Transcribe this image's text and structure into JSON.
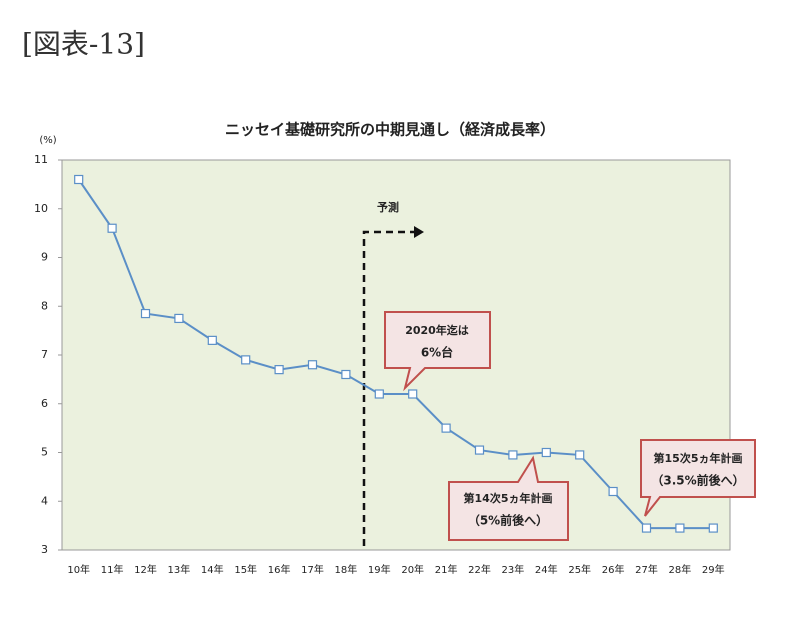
{
  "figure_label": "[図表-13]",
  "chart_data": {
    "type": "line",
    "title": "ニッセイ基礎研究所の中期見通し（経済成長率）",
    "y_unit": "(%)",
    "categories": [
      "10年",
      "11年",
      "12年",
      "13年",
      "14年",
      "15年",
      "16年",
      "17年",
      "18年",
      "19年",
      "20年",
      "21年",
      "22年",
      "23年",
      "24年",
      "25年",
      "26年",
      "27年",
      "28年",
      "29年"
    ],
    "values": [
      10.6,
      9.6,
      7.85,
      7.75,
      7.3,
      6.9,
      6.7,
      6.8,
      6.6,
      6.2,
      6.2,
      5.5,
      5.05,
      4.95,
      5.0,
      4.95,
      4.2,
      3.45,
      3.45,
      3.45
    ],
    "color": "#5b8fc7",
    "ylim": [
      3,
      11
    ],
    "yticks": [
      3,
      4,
      5,
      6,
      7,
      8,
      9,
      10,
      11
    ],
    "annotations": [
      {
        "lines": [
          "予測"
        ]
      },
      {
        "lines": [
          "2020年迄は",
          "6%台"
        ]
      },
      {
        "lines": [
          "第14次5ヵ年計画",
          "（5%前後へ）"
        ]
      },
      {
        "lines": [
          "第15次5ヵ年計画",
          "（3.5%前後へ）"
        ]
      }
    ]
  }
}
